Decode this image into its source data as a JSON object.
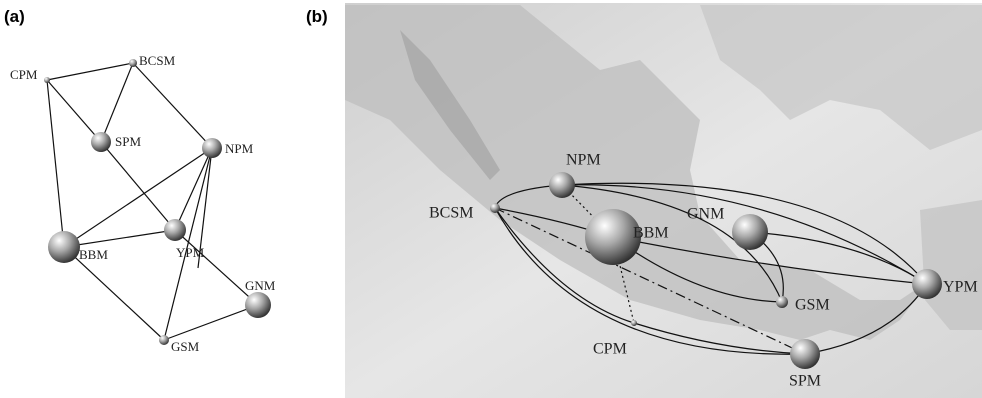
{
  "panels": [
    {
      "label": "(a)",
      "nodes": [
        {
          "label": "CPM"
        },
        {
          "label": "BCSM"
        },
        {
          "label": "SPM"
        },
        {
          "label": "NPM"
        },
        {
          "label": "BBM"
        },
        {
          "label": "YPM"
        },
        {
          "label": "GNM"
        },
        {
          "label": "GSM"
        }
      ]
    },
    {
      "label": "(b)",
      "nodes": [
        {
          "label": "NPM"
        },
        {
          "label": "BCSM"
        },
        {
          "label": "BBM"
        },
        {
          "label": "GNM"
        },
        {
          "label": "GSM"
        },
        {
          "label": "CPM"
        },
        {
          "label": "YPM"
        },
        {
          "label": "SPM"
        }
      ]
    }
  ]
}
